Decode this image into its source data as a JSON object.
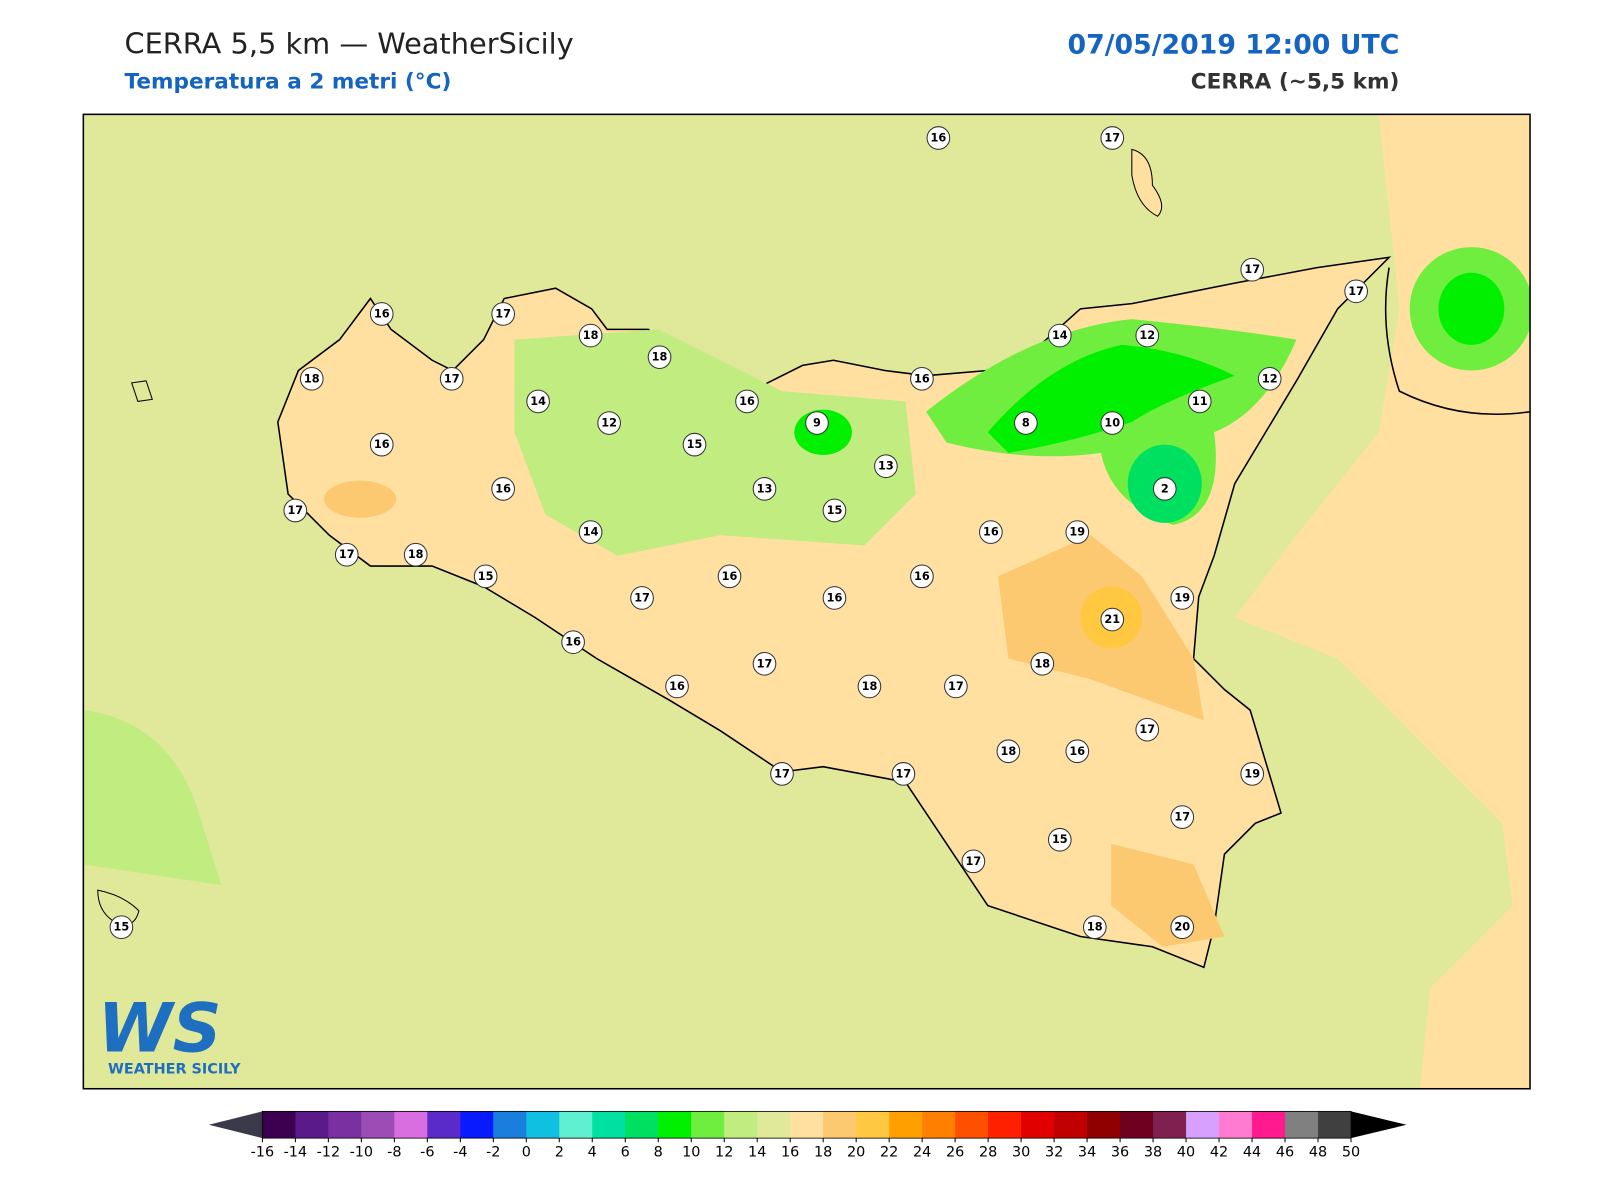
{
  "header": {
    "title": "CERRA 5,5 km — WeatherSicily",
    "subtitle": "Temperatura a 2 metri (°C)",
    "date": "07/05/2019 12:00 UTC",
    "model": "CERRA (~5,5 km)"
  },
  "stations": [
    16,
    17,
    17,
    17,
    16,
    17,
    18,
    14,
    12,
    18,
    18,
    17,
    16,
    12,
    14,
    16,
    11,
    12,
    9,
    8,
    10,
    16,
    15,
    13,
    16,
    13,
    2,
    17,
    15,
    14,
    16,
    19,
    17,
    18,
    15,
    16,
    16,
    17,
    16,
    19,
    21,
    16,
    17,
    18,
    16,
    18,
    17,
    17,
    18,
    16,
    17,
    17,
    19,
    17,
    15,
    17,
    15,
    18,
    20
  ],
  "colorbar": {
    "ticks": [
      -16,
      -14,
      -12,
      -10,
      -8,
      -6,
      -4,
      -2,
      0,
      2,
      4,
      6,
      8,
      10,
      12,
      14,
      16,
      18,
      20,
      22,
      24,
      26,
      28,
      30,
      32,
      34,
      36,
      38,
      40,
      42,
      44,
      46,
      48,
      50
    ],
    "colors": [
      "#3d0050",
      "#5a1a8a",
      "#7a30a0",
      "#9b4db5",
      "#d96ee0",
      "#5a2bc8",
      "#0a1aff",
      "#1a7fdc",
      "#10c0e0",
      "#5ef0d0",
      "#00e0a0",
      "#00e060",
      "#00f000",
      "#70ee40",
      "#c0ec80",
      "#e0e89a",
      "#ffe0a0",
      "#fcc870",
      "#ffc840",
      "#ffa000",
      "#ff8000",
      "#ff5000",
      "#ff2000",
      "#e00000",
      "#c00000",
      "#900000",
      "#700020",
      "#802050",
      "#d7a0ff",
      "#ff7ad0",
      "#ff1a90",
      "#808080",
      "#404040"
    ],
    "under": "#3a3a4a",
    "over": "#000000"
  },
  "logo": {
    "mark": "WS",
    "name": "WEATHER SICILY"
  }
}
